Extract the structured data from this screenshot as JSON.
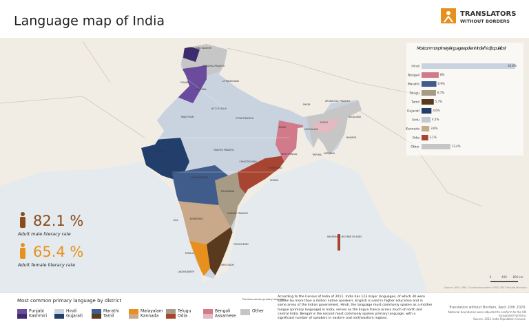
{
  "header": {
    "title": "Language map of India",
    "logo": [
      "TRANSLATORS",
      "WITHOUT BORDERS"
    ]
  },
  "bar_chart": {
    "type": "bar",
    "title": "Most common primary languages spoken in India (% of population)",
    "categories": [
      "Hindi",
      "Bengali",
      "Marathi",
      "Telugu",
      "Tamil",
      "Gujarati",
      "Urdu",
      "Kannada",
      "Odia",
      "Other"
    ],
    "values": [
      43.6,
      8,
      6.9,
      6.7,
      5.7,
      4.6,
      4.2,
      3.6,
      3.1,
      13.4
    ],
    "value_labels": [
      "43.6%",
      "8%",
      "6.9%",
      "6.7%",
      "5.7%",
      "4.6%",
      "4.2%",
      "3.6%",
      "3.1%",
      "13.4%"
    ],
    "colors": [
      "#c9d3e0",
      "#d07a8a",
      "#3f5c8a",
      "#a89b85",
      "#5a3a1e",
      "#223e6b",
      "#c4c9d1",
      "#c9a98a",
      "#a84432",
      "#c6c6c6"
    ]
  },
  "literacy": [
    {
      "value": "82.1 %",
      "label": "Adult male literacy rate",
      "color": "#8a4a1a"
    },
    {
      "value": "65.4 %",
      "label": "Adult female literacy rate",
      "color": "#e8901e"
    }
  ],
  "map": {
    "labels": [
      "JAMMU AND KASHMIR",
      "HIMACHAL PRADESH",
      "PUNJAB",
      "UTTARAKHAND",
      "HARYANA",
      "NCT OF DELHI",
      "RAJASTHAN",
      "UTTAR PRADESH",
      "BIHAR",
      "SIKKIM",
      "ARUNACHAL PRADESH",
      "ASSAM",
      "NAGALAND",
      "MEGHALAYA",
      "MANIPUR",
      "TRIPURA",
      "MIZORAM",
      "WEST BENGAL",
      "JHARKHAND",
      "GUJARAT",
      "MADHYA PRADESH",
      "CHHATTISGARH",
      "ODISHA",
      "MAHARASHTRA",
      "TELANGANA",
      "ANDHRA PRADESH",
      "KARNATAKA",
      "GOA",
      "KERALA",
      "TAMIL NADU",
      "PUDUCHERRY",
      "LAKSHADWEEP",
      "ANDAMAN & NICOBAR ISLANDS"
    ],
    "credit": "Datum: WGS 1984. Coordinate system: EPSG 3857 Pseudo-Mercator",
    "scale": [
      "0",
      "400",
      "800 km"
    ]
  },
  "legend": {
    "title": "Most common primary language by district",
    "note": "Previous names (primary language)",
    "items": [
      {
        "labels": [
          "Punjabi",
          "Kashmiri"
        ],
        "colors": [
          "#6b4c9c",
          "#3e2a6e"
        ]
      },
      {
        "labels": [
          "Hindi",
          "Gujarati"
        ],
        "colors": [
          "#c9d3e0",
          "#223e6b"
        ]
      },
      {
        "labels": [
          "Marathi",
          "Tamil"
        ],
        "colors": [
          "#3f5c8a",
          "#5a3a1e"
        ]
      },
      {
        "labels": [
          "Malayalam",
          "Kannada"
        ],
        "colors": [
          "#e8901e",
          "#c9a98a"
        ]
      },
      {
        "labels": [
          "Telugu",
          "Odia"
        ],
        "colors": [
          "#a89b85",
          "#a84432"
        ]
      },
      {
        "labels": [
          "Bengali",
          "Assamese"
        ],
        "colors": [
          "#d07a8a",
          "#e5b9c1"
        ]
      },
      {
        "labels": [
          "Other"
        ],
        "colors": [
          "#c6c6c6"
        ]
      }
    ]
  },
  "description": "According to the Census of India of 2011, India has 123 major languages, of which 30 were spoken by more than a million native speakers. English is used in higher education and in some areas of the Indian government. Hindi, the language most commonly spoken as a mother tongue (primary language) in India, serves as the lingua franca across much of north and central India. Bengali is the second most commonly spoken primary language, with a significant number of speakers in eastern and northeastern regions.",
  "footer": [
    "Translators without Borders, April 20th 2020.",
    "National boundaries were adjusted to conform to the UN recognised territory.",
    "Source: 2011 India Population Census."
  ]
}
